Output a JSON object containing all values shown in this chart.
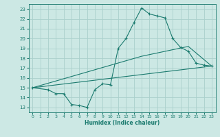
{
  "title": "",
  "xlabel": "Humidex (Indice chaleur)",
  "bg_color": "#cce8e4",
  "grid_color": "#aad0cc",
  "line_color": "#1a7a6e",
  "xlim": [
    -0.5,
    23.5
  ],
  "ylim": [
    12.5,
    23.5
  ],
  "yticks": [
    13,
    14,
    15,
    16,
    17,
    18,
    19,
    20,
    21,
    22,
    23
  ],
  "xticks": [
    0,
    1,
    2,
    3,
    4,
    5,
    6,
    7,
    8,
    9,
    10,
    11,
    12,
    13,
    14,
    15,
    16,
    17,
    18,
    19,
    20,
    21,
    22,
    23
  ],
  "line1_x": [
    0,
    2,
    3,
    4,
    5,
    6,
    7,
    8,
    9,
    10,
    11,
    12,
    13,
    14,
    15,
    16,
    17,
    18,
    19,
    20,
    21,
    22,
    23
  ],
  "line1_y": [
    15.0,
    14.8,
    14.4,
    14.4,
    13.3,
    13.2,
    13.0,
    14.8,
    15.4,
    15.3,
    19.0,
    20.0,
    21.6,
    23.1,
    22.5,
    22.3,
    22.1,
    20.0,
    19.1,
    18.7,
    17.5,
    17.3,
    17.2
  ],
  "line2_x": [
    0,
    23
  ],
  "line2_y": [
    15.0,
    17.2
  ],
  "line3_x": [
    0,
    14,
    20,
    23
  ],
  "line3_y": [
    15.0,
    18.2,
    19.2,
    17.2
  ]
}
